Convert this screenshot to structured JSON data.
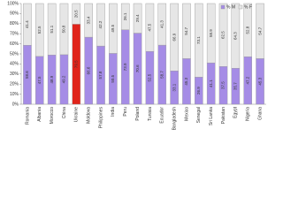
{
  "chart_data": {
    "type": "stacked_bar",
    "categories": [
      "Romania",
      "Albania",
      "Morocco",
      "China",
      "Ukraine",
      "Moldova",
      "Philippines",
      "India",
      "Peru",
      "Poland",
      "Tunisia",
      "Ecuador",
      "Bangladesh",
      "Mexico",
      "Senegal",
      "Sri Lanka",
      "Pakistan",
      "Egypt",
      "Nigeria",
      "Ghana"
    ],
    "series": [
      {
        "name": "% M",
        "color": "#a58ce6",
        "colors": [
          "#a58ce6",
          "#a58ce6",
          "#a58ce6",
          "#a58ce6",
          "#e0241b",
          "#a58ce6",
          "#a58ce6",
          "#a58ce6",
          "#a58ce6",
          "#a58ce6",
          "#a58ce6",
          "#a58ce6",
          "#a58ce6",
          "#a58ce6",
          "#a58ce6",
          "#a58ce6",
          "#a58ce6",
          "#a58ce6",
          "#a58ce6",
          "#a58ce6"
        ],
        "values": [
          58.6,
          47.5,
          48.9,
          49.2,
          79.5,
          66.6,
          57.8,
          50.5,
          73.9,
          70.6,
          52.5,
          58.7,
          33.1,
          45.3,
          26.9,
          41.1,
          37.5,
          35.7,
          47.2,
          45.3
        ]
      },
      {
        "name": "% F",
        "color": "#e6e6e6",
        "values": [
          41.4,
          52.5,
          51.1,
          50.8,
          20.5,
          33.4,
          42.2,
          49.5,
          26.1,
          29.4,
          47.5,
          41.3,
          66.9,
          54.7,
          73.1,
          58.9,
          62.5,
          64.3,
          52.8,
          54.7
        ]
      }
    ],
    "ylim": [
      0,
      100
    ],
    "yticks": [
      {
        "value": 0,
        "label": "0%"
      },
      {
        "value": 10,
        "label": "10%"
      },
      {
        "value": 20,
        "label": "20%"
      },
      {
        "value": 30,
        "label": "30%"
      },
      {
        "value": 40,
        "label": "40%"
      },
      {
        "value": 50,
        "label": "50%"
      },
      {
        "value": 60,
        "label": "60%"
      },
      {
        "value": 70,
        "label": "70%"
      },
      {
        "value": 80,
        "label": "80%"
      },
      {
        "value": 90,
        "label": "90%"
      },
      {
        "value": 100,
        "label": "100%"
      }
    ],
    "legend": "top-right"
  }
}
